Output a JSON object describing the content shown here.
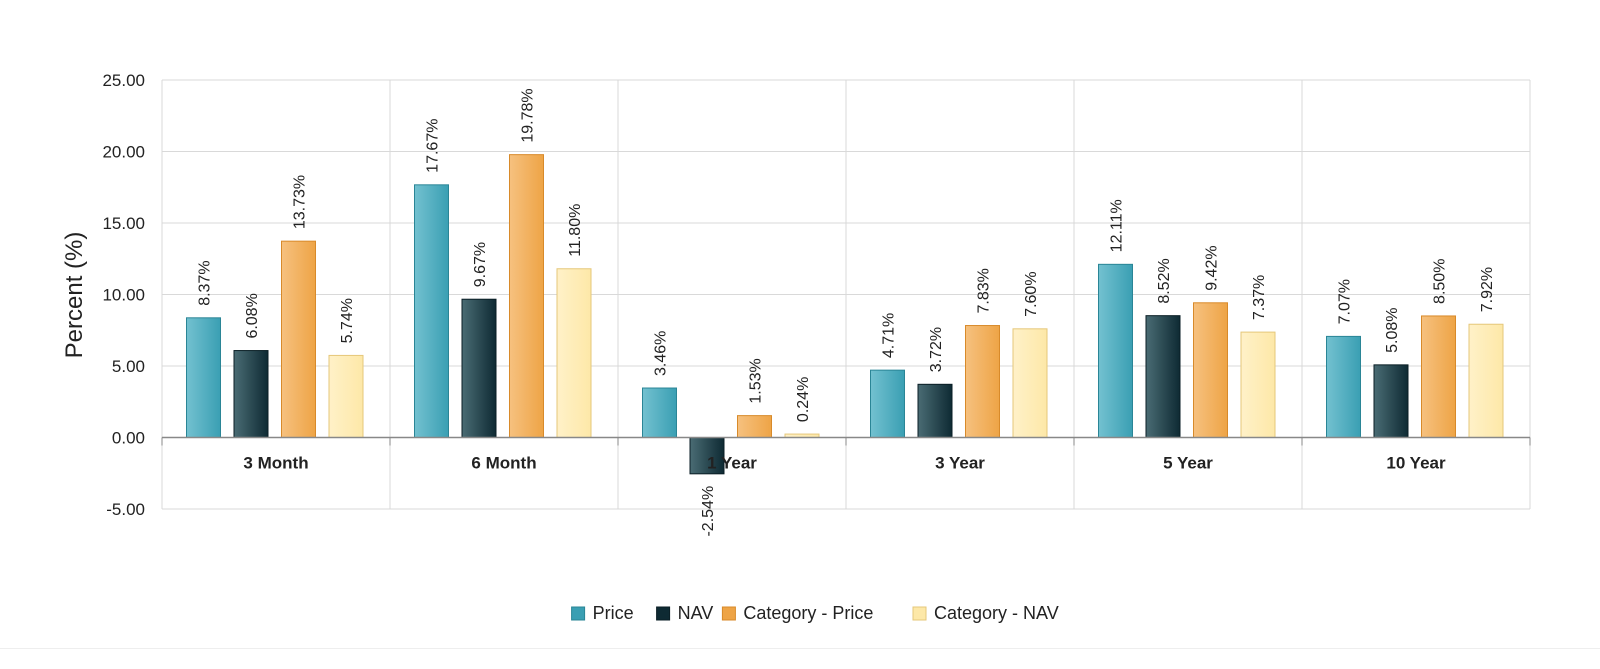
{
  "chart_data": {
    "type": "bar",
    "title": "",
    "xlabel": "",
    "ylabel": "Percent (%)",
    "ylim": [
      -5,
      25
    ],
    "yticks": [
      -5,
      0,
      5,
      10,
      15,
      20,
      25
    ],
    "ytick_labels": [
      "-5.00",
      "0.00",
      "5.00",
      "10.00",
      "15.00",
      "20.00",
      "25.00"
    ],
    "grid": true,
    "legend_position": "bottom-center",
    "categories": [
      "3 Month",
      "6 Month",
      "1 Year",
      "3 Year",
      "5 Year",
      "10 Year"
    ],
    "series": [
      {
        "name": "Price",
        "color": "#3a9fb3",
        "color_light": "#73c1d0",
        "border": "#2a8596",
        "values": [
          8.37,
          17.67,
          3.46,
          4.71,
          12.11,
          7.07
        ],
        "labels": [
          "8.37%",
          "17.67%",
          "3.46%",
          "4.71%",
          "12.11%",
          "7.07%"
        ]
      },
      {
        "name": "NAV",
        "color": "#0e2a33",
        "color_light": "#4a6c74",
        "border": "#0a1e25",
        "values": [
          6.08,
          9.67,
          -2.54,
          3.72,
          8.52,
          5.08
        ],
        "labels": [
          "6.08%",
          "9.67%",
          "-2.54%",
          "3.72%",
          "8.52%",
          "5.08%"
        ]
      },
      {
        "name": "Category - Price",
        "color": "#eea446",
        "color_light": "#f6c17f",
        "border": "#d88a2a",
        "values": [
          13.73,
          19.78,
          1.53,
          7.83,
          9.42,
          8.5
        ],
        "labels": [
          "13.73%",
          "19.78%",
          "1.53%",
          "7.83%",
          "9.42%",
          "8.50%"
        ]
      },
      {
        "name": "Category - NAV",
        "color": "#fde8a8",
        "color_light": "#fff1c8",
        "border": "#e5c77a",
        "values": [
          5.74,
          11.8,
          0.24,
          7.6,
          7.37,
          7.92
        ],
        "labels": [
          "5.74%",
          "11.80%",
          "0.24%",
          "7.60%",
          "7.37%",
          "7.92%"
        ]
      }
    ]
  }
}
